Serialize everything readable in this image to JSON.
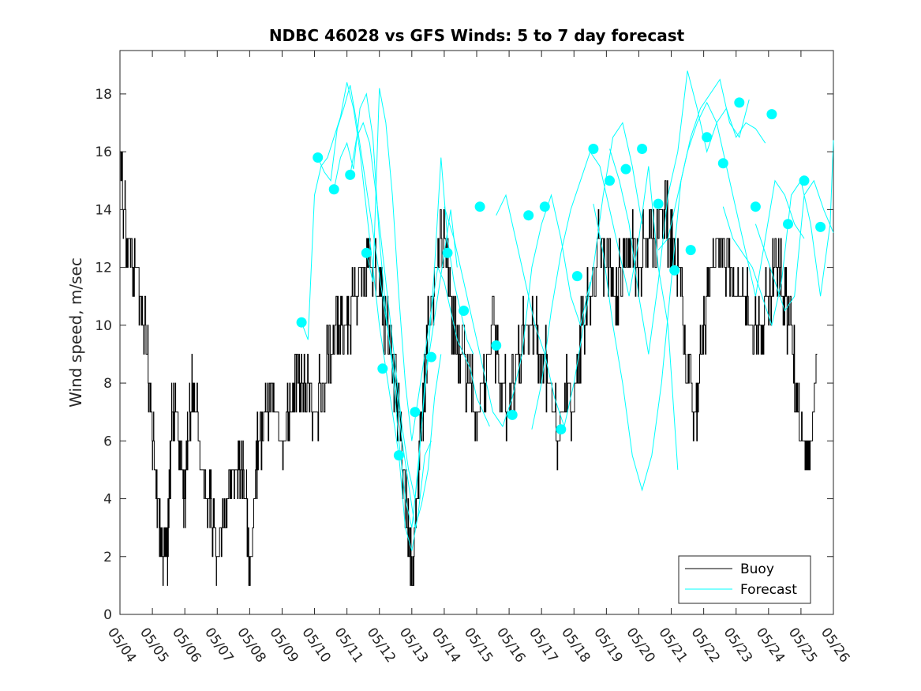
{
  "chart_data": {
    "type": "line",
    "title": "NDBC 46028 vs GFS Winds: 5 to 7 day forecast",
    "xlabel": "",
    "ylabel": "Wind speed, m/sec",
    "xlim_days": [
      0,
      22
    ],
    "ylim": [
      0,
      19.5
    ],
    "y_ticks": [
      0,
      2,
      4,
      6,
      8,
      10,
      12,
      14,
      16,
      18
    ],
    "x_ticks": [
      "05/04",
      "05/05",
      "05/06",
      "05/07",
      "05/08",
      "05/09",
      "05/10",
      "05/11",
      "05/12",
      "05/13",
      "05/14",
      "05/15",
      "05/16",
      "05/17",
      "05/18",
      "05/19",
      "05/20",
      "05/21",
      "05/22",
      "05/23",
      "05/24",
      "05/25",
      "05/26"
    ],
    "grid": false,
    "legend_position": "bottom-right",
    "colors": {
      "buoy": "#000000",
      "forecast": "#00ffff",
      "axis": "#262626"
    },
    "series": [
      {
        "name": "Buoy",
        "color": "#000000",
        "x_days": [
          0,
          0.1,
          0.25,
          0.5,
          0.75,
          0.9,
          1.0,
          1.1,
          1.25,
          1.4,
          1.5,
          1.6,
          1.75,
          1.9,
          2.0,
          2.1,
          2.25,
          2.5,
          2.75,
          2.9,
          3.0,
          3.25,
          3.5,
          3.75,
          3.9,
          4.0,
          4.25,
          4.5,
          4.75,
          5.0,
          5.25,
          5.5,
          5.75,
          6.0,
          6.25,
          6.5,
          6.75,
          7.0,
          7.25,
          7.5,
          7.75,
          8.0,
          8.25,
          8.5,
          8.75,
          8.9,
          9.0,
          9.15,
          9.25,
          9.4,
          9.5,
          9.75,
          10.0,
          10.1,
          10.25,
          10.5,
          10.75,
          11.0,
          11.25,
          11.5,
          11.75,
          12.0,
          12.25,
          12.5,
          12.75,
          13.0,
          13.25,
          13.5,
          13.75,
          14.0,
          14.25,
          14.5,
          14.75,
          15.0,
          15.25,
          15.5,
          15.75,
          16.0,
          16.25,
          16.5,
          16.75,
          17.0,
          17.25,
          17.5,
          17.75,
          18.0,
          18.25,
          18.5,
          18.75,
          19.0,
          19.25,
          19.5,
          19.75,
          20.0,
          20.25,
          20.5,
          20.75,
          21.0,
          21.25,
          21.5
        ],
        "values": [
          16,
          14,
          13,
          12,
          10,
          8,
          6,
          5,
          3,
          1.5,
          3,
          7,
          7,
          5,
          4,
          6,
          8,
          5,
          4,
          3,
          2,
          4,
          5,
          5,
          4,
          1.5,
          6,
          7,
          7,
          6,
          7,
          8,
          8,
          7,
          8,
          9,
          10,
          10,
          11,
          12,
          12,
          11,
          10,
          8,
          5,
          3,
          1,
          4,
          6,
          8,
          10,
          12,
          13,
          12,
          10,
          9,
          8,
          7,
          8,
          10,
          8,
          7,
          9,
          10,
          10,
          9,
          8,
          6,
          8,
          7,
          10,
          11,
          13,
          12,
          11,
          12,
          13,
          12,
          13,
          13,
          14,
          13,
          12,
          8,
          7,
          10,
          12,
          13,
          12,
          11,
          11,
          10,
          10,
          11,
          12,
          11,
          9,
          6,
          5,
          9
        ]
      },
      {
        "name": "Forecast",
        "color": "#00ffff",
        "runs": [
          {
            "x_days": [
              5.6,
              5.8,
              6.0,
              6.2,
              6.4,
              6.6,
              6.8,
              7.0,
              7.2,
              7.4,
              7.6,
              7.8,
              8.0,
              8.2,
              8.4,
              8.6,
              8.8,
              9.0,
              9.2,
              9.4,
              9.6
            ],
            "values": [
              10.1,
              9.5,
              14.5,
              15.5,
              15.8,
              16.5,
              17.2,
              18.4,
              17.5,
              16.0,
              14.0,
              12.0,
              10.0,
              8.5,
              7.0,
              5.5,
              3.0,
              2.2,
              3.5,
              5.5,
              6.0
            ]
          },
          {
            "x_days": [
              6.1,
              6.3,
              6.5,
              6.7,
              6.9,
              7.1,
              7.3,
              7.5,
              7.7,
              7.9,
              8.1,
              8.3,
              8.5,
              8.7,
              8.9,
              9.1,
              9.3,
              9.5,
              9.7,
              9.9
            ],
            "values": [
              15.8,
              15.3,
              15.0,
              16.8,
              17.5,
              18.3,
              17.0,
              15.5,
              14.0,
              12.5,
              11.0,
              9.5,
              8.0,
              6.0,
              4.5,
              3.0,
              3.8,
              5.0,
              7.5,
              9.0
            ]
          },
          {
            "x_days": [
              6.6,
              6.8,
              7.0,
              7.2,
              7.4,
              7.6,
              7.8,
              8.0,
              8.2,
              8.4,
              8.6,
              8.8,
              9.0,
              9.2,
              9.4,
              9.6,
              9.8,
              10.0,
              10.2,
              10.4
            ],
            "values": [
              14.7,
              15.8,
              16.3,
              15.4,
              17.5,
              18.0,
              16.5,
              13.0,
              10.5,
              8.5,
              6.0,
              4.0,
              3.0,
              5.0,
              8.0,
              9.5,
              11.0,
              12.5,
              14.0,
              12.0
            ]
          },
          {
            "x_days": [
              7.1,
              7.3,
              7.5,
              7.7,
              7.9,
              8.1,
              8.3,
              8.5,
              8.7,
              8.9,
              9.1,
              9.3,
              9.5,
              9.7,
              9.9,
              10.1,
              10.3,
              10.5,
              10.7,
              10.9
            ],
            "values": [
              15.2,
              16.5,
              17.0,
              16.3,
              14.5,
              12.5,
              10.5,
              8.5,
              6.5,
              5.0,
              4.0,
              6.5,
              9.0,
              12.0,
              15.8,
              13.0,
              11.5,
              10.5,
              9.5,
              9.0
            ]
          },
          {
            "x_days": [
              7.6,
              7.8,
              8.0,
              8.2,
              8.4,
              8.6,
              8.8,
              9.0,
              9.2,
              9.4,
              9.6,
              9.8,
              10.0,
              10.2,
              10.4,
              10.6,
              10.8,
              11.0,
              11.2,
              11.4
            ],
            "values": [
              12.5,
              11.5,
              18.2,
              17.0,
              14.5,
              11.0,
              8.0,
              6.0,
              7.5,
              9.0,
              10.5,
              12.0,
              11.5,
              10.5,
              9.5,
              9.0,
              8.5,
              7.5,
              7.0,
              6.5
            ]
          },
          {
            "x_days": [
              10.0,
              10.3,
              10.6,
              10.9,
              11.2,
              11.5,
              11.8,
              12.1,
              12.4,
              12.7,
              13.0,
              13.3,
              13.6,
              13.9,
              14.2,
              14.5
            ],
            "values": [
              14.1,
              13.0,
              11.5,
              10.0,
              8.5,
              7.0,
              6.5,
              7.5,
              9.0,
              12.0,
              13.5,
              14.5,
              13.0,
              11.0,
              10.0,
              11.5
            ]
          },
          {
            "x_days": [
              11.6,
              11.9,
              12.2,
              12.5,
              12.8,
              13.1,
              13.4,
              13.7,
              14.0,
              14.3,
              14.6,
              14.9,
              15.2,
              15.5,
              15.8,
              16.1
            ],
            "values": [
              13.8,
              14.5,
              13.0,
              11.5,
              10.0,
              9.0,
              7.5,
              6.5,
              8.0,
              10.0,
              12.0,
              14.5,
              16.5,
              17.0,
              15.5,
              13.5
            ]
          },
          {
            "x_days": [
              12.7,
              13.0,
              13.3,
              13.6,
              13.9,
              14.2,
              14.5,
              14.8,
              15.1,
              15.4,
              15.7,
              16.0,
              16.3,
              16.6,
              16.9,
              17.2
            ],
            "values": [
              6.4,
              8.0,
              10.5,
              12.5,
              14.0,
              15.0,
              16.0,
              15.5,
              14.0,
              12.5,
              11.0,
              13.0,
              15.5,
              12.0,
              10.0,
              5.0
            ]
          },
          {
            "x_days": [
              14.6,
              14.9,
              15.2,
              15.5,
              15.8,
              16.1,
              16.4,
              16.7,
              17.0,
              17.3,
              17.6,
              17.9,
              18.2,
              18.5,
              18.8,
              19.1,
              19.4
            ],
            "values": [
              14.2,
              12.5,
              10.0,
              8.0,
              5.5,
              4.3,
              5.5,
              8.0,
              11.5,
              15.0,
              16.5,
              17.5,
              18.0,
              18.5,
              17.0,
              16.5,
              17.8
            ]
          },
          {
            "x_days": [
              15.1,
              15.4,
              15.7,
              16.0,
              16.3,
              16.6,
              16.9,
              17.2,
              17.5,
              17.8,
              18.1,
              18.4,
              18.7,
              19.0,
              19.3,
              19.6,
              19.9
            ],
            "values": [
              16.1,
              15.0,
              13.5,
              11.0,
              9.0,
              11.5,
              14.5,
              16.0,
              18.8,
              17.5,
              16.0,
              17.0,
              17.5,
              16.5,
              17.0,
              16.8,
              16.3
            ]
          },
          {
            "x_days": [
              16.6,
              16.9,
              17.2,
              17.5,
              17.8,
              18.1,
              18.4,
              18.7,
              19.0,
              19.3,
              19.6,
              19.9,
              20.2,
              20.5,
              20.8,
              21.1
            ],
            "values": [
              12.6,
              13.0,
              14.5,
              16.0,
              17.0,
              17.7,
              17.0,
              15.5,
              14.0,
              12.5,
              11.0,
              13.0,
              15.0,
              14.5,
              13.5,
              13.0
            ]
          },
          {
            "x_days": [
              18.6,
              18.9,
              19.2,
              19.5,
              19.8,
              20.1,
              20.4,
              20.7,
              21.0,
              21.3,
              21.6,
              21.9,
              22.0
            ],
            "values": [
              14.1,
              13.0,
              12.5,
              12.0,
              11.0,
              10.0,
              11.5,
              14.5,
              15.0,
              13.5,
              11.0,
              13.5,
              16.4
            ]
          },
          {
            "x_days": [
              19.6,
              19.9,
              20.2,
              20.5,
              20.8,
              21.1,
              21.4,
              21.7,
              22.0
            ],
            "values": [
              13.5,
              12.5,
              11.5,
              10.5,
              11.0,
              14.5,
              15.0,
              14.0,
              13.2
            ]
          }
        ],
        "markers": {
          "x_days": [
            5.6,
            6.1,
            6.6,
            7.1,
            7.6,
            8.1,
            8.6,
            9.1,
            9.6,
            10.1,
            10.6,
            11.1,
            11.6,
            12.1,
            12.6,
            13.1,
            13.6,
            14.1,
            14.6,
            15.1,
            15.6,
            16.1,
            16.6,
            17.1,
            17.6,
            18.1,
            18.6,
            19.1,
            19.6,
            20.1,
            20.6
          ],
          "values": [
            10.1,
            15.8,
            14.7,
            15.2,
            12.5,
            8.5,
            5.5,
            7.0,
            8.9,
            12.5,
            10.5,
            14.1,
            9.3,
            6.9,
            13.8,
            14.1,
            6.4,
            11.7,
            16.1,
            15.0,
            15.4,
            16.1,
            14.2,
            11.9,
            12.6,
            16.5,
            15.6,
            17.7,
            14.1,
            17.3,
            13.5
          ],
          "extra": [
            {
              "x": 21.1,
              "y": 15.0
            },
            {
              "x": 21.6,
              "y": 13.4
            }
          ]
        }
      }
    ]
  },
  "legend": {
    "items": [
      "Buoy",
      "Forecast"
    ]
  }
}
